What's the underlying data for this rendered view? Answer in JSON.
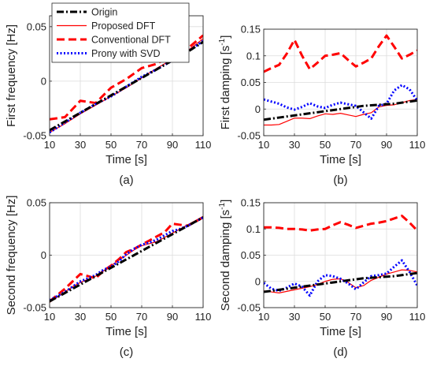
{
  "legend": [
    {
      "label": "Origin",
      "color": "#000000",
      "dash": "dashdot"
    },
    {
      "label": "Proposed DFT",
      "color": "#ff0000",
      "dash": "solid"
    },
    {
      "label": "Conventional DFT",
      "color": "#ff0000",
      "dash": "dashed"
    },
    {
      "label": "Prony with SVD",
      "color": "#0000ff",
      "dash": "dotted"
    }
  ],
  "chart_data": [
    {
      "type": "line",
      "caption": "(a)",
      "xlabel": "Time [s]",
      "ylabel": "First frequency [Hz]",
      "xlim": [
        10,
        110
      ],
      "ylim": [
        -0.05,
        0.06
      ],
      "xticks": [
        10,
        30,
        50,
        70,
        90,
        110
      ],
      "yticks": [
        -0.05,
        0,
        0.05
      ],
      "ytick_labels": [
        "-0.05",
        "0",
        "0.05"
      ],
      "grid": true,
      "x": [
        10,
        20,
        30,
        40,
        50,
        60,
        70,
        80,
        90,
        100,
        110
      ],
      "series": [
        {
          "name": "Origin",
          "values": [
            -0.045,
            -0.037,
            -0.029,
            -0.021,
            -0.013,
            -0.005,
            0.003,
            0.011,
            0.019,
            0.027,
            0.036
          ]
        },
        {
          "name": "Proposed DFT",
          "values": [
            -0.047,
            -0.039,
            -0.03,
            -0.022,
            -0.014,
            -0.006,
            0.003,
            0.012,
            0.02,
            0.028,
            0.039
          ]
        },
        {
          "name": "Conventional DFT",
          "values": [
            -0.035,
            -0.033,
            -0.018,
            -0.02,
            -0.006,
            0.002,
            0.012,
            0.016,
            0.025,
            0.03,
            0.042
          ]
        },
        {
          "name": "Prony with SVD",
          "values": [
            -0.047,
            -0.038,
            -0.029,
            -0.021,
            -0.014,
            -0.005,
            0.004,
            0.011,
            0.019,
            0.027,
            0.037
          ]
        }
      ]
    },
    {
      "type": "line",
      "caption": "(b)",
      "xlabel": "Time [s]",
      "ylabel": "First damping [s",
      "ylabel_sup": "-1",
      "ylabel_end": "]",
      "xlim": [
        10,
        110
      ],
      "ylim": [
        -0.05,
        0.15
      ],
      "xticks": [
        10,
        30,
        50,
        70,
        90,
        110
      ],
      "yticks": [
        -0.05,
        0,
        0.05,
        0.1,
        0.15
      ],
      "ytick_labels": [
        "-0.05",
        "0",
        "0.05",
        "0.1",
        "0.15"
      ],
      "grid": true,
      "x": [
        10,
        15,
        20,
        25,
        30,
        35,
        40,
        45,
        50,
        55,
        60,
        65,
        70,
        75,
        80,
        85,
        90,
        95,
        100,
        105,
        110
      ],
      "series": [
        {
          "name": "Origin",
          "values": [
            -0.02,
            -0.018,
            -0.016,
            -0.014,
            -0.012,
            -0.01,
            -0.008,
            -0.006,
            -0.004,
            -0.002,
            0.0,
            0.002,
            0.004,
            0.006,
            0.007,
            0.008,
            0.009,
            0.01,
            0.012,
            0.014,
            0.016
          ]
        },
        {
          "name": "Proposed DFT",
          "values": [
            -0.03,
            -0.03,
            -0.029,
            -0.023,
            -0.017,
            -0.017,
            -0.018,
            -0.013,
            -0.009,
            -0.01,
            -0.008,
            -0.011,
            -0.014,
            -0.01,
            -0.007,
            0.004,
            0.007,
            0.008,
            0.012,
            0.016,
            0.018
          ]
        },
        {
          "name": "Conventional DFT",
          "values": [
            0.07,
            0.077,
            0.083,
            0.104,
            0.13,
            0.1,
            0.075,
            0.087,
            0.1,
            0.102,
            0.105,
            0.092,
            0.08,
            0.087,
            0.095,
            0.118,
            0.138,
            0.117,
            0.095,
            0.102,
            0.11
          ]
        },
        {
          "name": "Prony with SVD",
          "values": [
            0.018,
            0.014,
            0.01,
            0.003,
            -0.001,
            0.004,
            0.011,
            0.005,
            0.002,
            0.008,
            0.012,
            0.009,
            0.006,
            -0.006,
            -0.018,
            0.006,
            0.01,
            0.035,
            0.045,
            0.037,
            0.016
          ]
        }
      ]
    },
    {
      "type": "line",
      "caption": "(c)",
      "xlabel": "Time [s]",
      "ylabel": "Second frequency [Hz]",
      "xlim": [
        10,
        110
      ],
      "ylim": [
        -0.05,
        0.05
      ],
      "xticks": [
        10,
        30,
        50,
        70,
        90,
        110
      ],
      "yticks": [
        -0.05,
        0,
        0.05
      ],
      "ytick_labels": [
        "-0.05",
        "0",
        "0.05"
      ],
      "grid": true,
      "x": [
        10,
        15,
        20,
        25,
        30,
        35,
        40,
        45,
        50,
        55,
        60,
        65,
        70,
        75,
        80,
        85,
        90,
        95,
        100,
        105,
        110
      ],
      "series": [
        {
          "name": "Origin",
          "values": [
            -0.044,
            -0.04,
            -0.036,
            -0.032,
            -0.028,
            -0.024,
            -0.02,
            -0.016,
            -0.012,
            -0.008,
            -0.004,
            0.0,
            0.004,
            0.008,
            0.012,
            0.016,
            0.02,
            0.024,
            0.028,
            0.032,
            0.036
          ]
        },
        {
          "name": "Proposed DFT",
          "values": [
            -0.045,
            -0.04,
            -0.035,
            -0.03,
            -0.026,
            -0.023,
            -0.02,
            -0.015,
            -0.01,
            -0.005,
            0.0,
            0.005,
            0.009,
            0.011,
            0.013,
            0.017,
            0.021,
            0.025,
            0.029,
            0.033,
            0.037
          ]
        },
        {
          "name": "Conventional DFT",
          "values": [
            -0.044,
            -0.038,
            -0.032,
            -0.025,
            -0.018,
            -0.02,
            -0.022,
            -0.015,
            -0.01,
            -0.004,
            0.003,
            0.006,
            0.01,
            0.014,
            0.018,
            0.022,
            0.03,
            0.029,
            0.028,
            0.032,
            0.036
          ]
        },
        {
          "name": "Prony with SVD",
          "values": [
            -0.043,
            -0.039,
            -0.035,
            -0.03,
            -0.025,
            -0.022,
            -0.019,
            -0.014,
            -0.011,
            -0.006,
            0.001,
            0.006,
            0.01,
            0.012,
            0.015,
            0.019,
            0.023,
            0.025,
            0.028,
            0.032,
            0.036
          ]
        }
      ]
    },
    {
      "type": "line",
      "caption": "(d)",
      "xlabel": "Time [s]",
      "ylabel": "Second damping [s",
      "ylabel_sup": "-1",
      "ylabel_end": "]",
      "xlim": [
        10,
        110
      ],
      "ylim": [
        -0.05,
        0.15
      ],
      "xticks": [
        10,
        30,
        50,
        70,
        90,
        110
      ],
      "yticks": [
        -0.05,
        0,
        0.05,
        0.1,
        0.15
      ],
      "ytick_labels": [
        "-0.05",
        "0",
        "0.05",
        "0.1",
        "0.15"
      ],
      "grid": true,
      "x": [
        10,
        15,
        20,
        25,
        30,
        35,
        40,
        45,
        50,
        55,
        60,
        65,
        70,
        75,
        80,
        85,
        90,
        95,
        100,
        105,
        110
      ],
      "series": [
        {
          "name": "Origin",
          "values": [
            -0.02,
            -0.018,
            -0.016,
            -0.014,
            -0.012,
            -0.01,
            -0.008,
            -0.006,
            -0.004,
            -0.002,
            0.0,
            0.002,
            0.004,
            0.006,
            0.007,
            0.008,
            0.009,
            0.01,
            0.012,
            0.014,
            0.016
          ]
        },
        {
          "name": "Proposed DFT",
          "values": [
            -0.018,
            -0.02,
            -0.022,
            -0.019,
            -0.016,
            -0.013,
            -0.01,
            -0.006,
            0.0,
            0.004,
            0.005,
            -0.002,
            -0.012,
            -0.008,
            0.002,
            0.008,
            0.014,
            0.018,
            0.022,
            0.021,
            0.018
          ]
        },
        {
          "name": "Conventional DFT",
          "values": [
            0.103,
            0.103,
            0.102,
            0.1,
            0.1,
            0.099,
            0.097,
            0.099,
            0.1,
            0.107,
            0.113,
            0.108,
            0.102,
            0.106,
            0.11,
            0.112,
            0.115,
            0.12,
            0.125,
            0.112,
            0.097
          ]
        },
        {
          "name": "Prony with SVD",
          "values": [
            -0.003,
            -0.014,
            -0.018,
            -0.012,
            -0.004,
            -0.01,
            -0.027,
            0.0,
            0.012,
            0.01,
            0.005,
            -0.004,
            -0.015,
            -0.002,
            0.01,
            0.012,
            0.015,
            0.028,
            0.04,
            0.018,
            -0.008
          ]
        }
      ]
    }
  ]
}
